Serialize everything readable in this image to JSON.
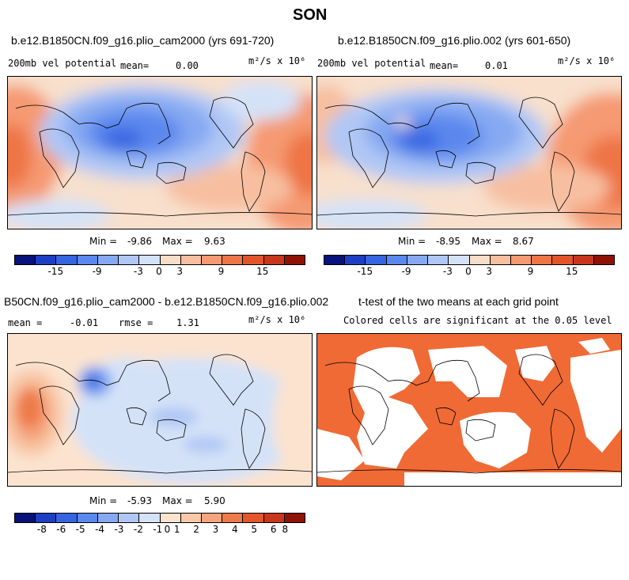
{
  "page_title": "SON",
  "colors": {
    "sig_fill": "#f06a35",
    "sig_bg": "#ffffff",
    "coast": "#000000"
  },
  "panels": {
    "top_left": {
      "title": "b.e12.B1850CN.f09_g16.plio_cam2000 (yrs 691-720)",
      "field": "200mb vel potential",
      "mean_label": "mean=",
      "mean_value": "0.00",
      "units": "m²/s x 10⁶",
      "min_label": "Min =",
      "min_value": "-9.86",
      "max_label": "Max =",
      "max_value": "9.63"
    },
    "top_right": {
      "title": "b.e12.B1850CN.f09_g16.plio.002 (yrs 601-650)",
      "field": "200mb vel potential",
      "mean_label": "mean=",
      "mean_value": "0.01",
      "units": "m²/s x 10⁶",
      "min_label": "Min =",
      "min_value": "-8.95",
      "max_label": "Max =",
      "max_value": "8.67"
    },
    "bottom_left": {
      "title": "B50CN.f09_g16.plio_cam2000 - b.e12.B1850CN.f09_g16.plio.002",
      "mean_label": "mean =",
      "mean_value": "-0.01",
      "rmse_label": "rmse =",
      "rmse_value": "1.31",
      "units": "m²/s x 10⁶",
      "min_label": "Min =",
      "min_value": "-5.93",
      "max_label": "Max =",
      "max_value": "5.90"
    },
    "bottom_right": {
      "title": "t-test of the two means at each grid point",
      "subtitle": "Colored cells are significant at the 0.05 level"
    }
  },
  "colorbar_top": {
    "colors": [
      "#08127a",
      "#1d3fc4",
      "#3565e0",
      "#5b88ee",
      "#86a9f2",
      "#b0c7f5",
      "#d4e2f8",
      "#f8ddc8",
      "#f7bfa0",
      "#f59a72",
      "#ee7545",
      "#e2542a",
      "#c8361c",
      "#8e1306"
    ],
    "ticks": [
      "-15",
      "-9",
      "-3",
      "0",
      "3",
      "9",
      "15"
    ]
  },
  "colorbar_diff": {
    "colors": [
      "#08127a",
      "#1d3fc4",
      "#3565e0",
      "#5b88ee",
      "#86a9f2",
      "#b0c7f5",
      "#d4e2f8",
      "#fbe3cf",
      "#f8c8a8",
      "#f5a57e",
      "#ee7a4a",
      "#e4562c",
      "#c8361c",
      "#8e1306"
    ],
    "ticks": [
      "-8",
      "-6",
      "-5",
      "-4",
      "-3",
      "-2",
      "-1",
      "0",
      "1",
      "2",
      "3",
      "4",
      "5",
      "6",
      "8"
    ]
  }
}
